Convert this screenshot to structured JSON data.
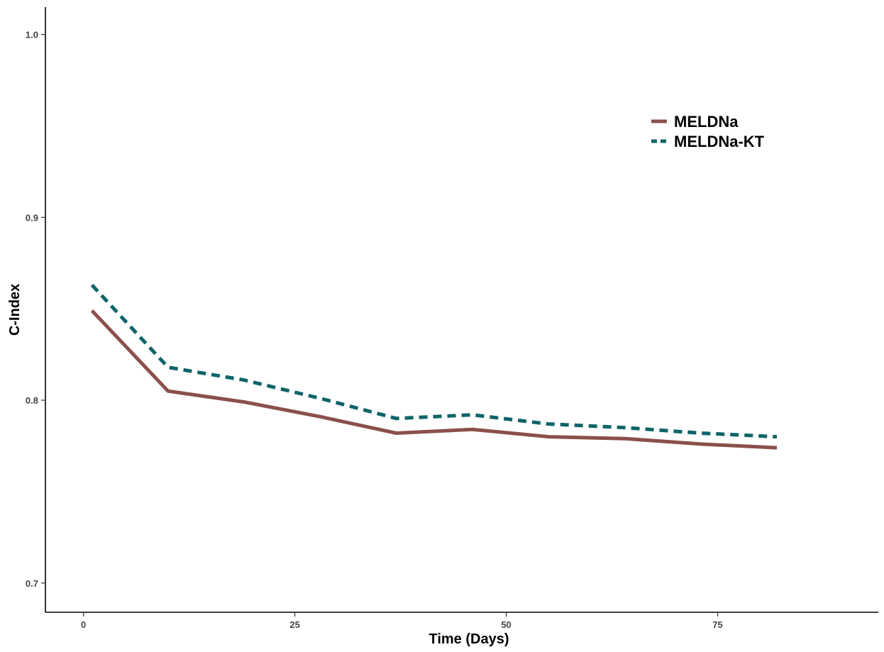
{
  "chart_data": {
    "type": "line",
    "title": "",
    "xlabel": "Time (Days)",
    "ylabel": "C-Index",
    "xlim": [
      -4.5,
      94
    ],
    "ylim": [
      0.684,
      1.015
    ],
    "x_ticks": [
      0,
      25,
      50,
      75
    ],
    "x_tick_labels": [
      "0",
      "25",
      "50",
      "75"
    ],
    "y_ticks": [
      0.7,
      0.8,
      0.9,
      1.0
    ],
    "y_tick_labels": [
      "0.7",
      "0.8",
      "0.9",
      "1.0"
    ],
    "grid": false,
    "legend_position": "top-right",
    "series": [
      {
        "name": "MELDNa",
        "color": "#8B504A",
        "dash": "solid",
        "x": [
          1,
          10,
          19,
          28,
          37,
          46,
          55,
          64,
          73,
          82
        ],
        "y": [
          0.849,
          0.805,
          0.799,
          0.791,
          0.782,
          0.784,
          0.78,
          0.779,
          0.776,
          0.774
        ]
      },
      {
        "name": "MELDNa-KT",
        "color": "#0E6468",
        "dash": "dashed",
        "x": [
          1,
          10,
          19,
          28,
          37,
          46,
          55,
          64,
          73,
          82
        ],
        "y": [
          0.863,
          0.818,
          0.811,
          0.801,
          0.79,
          0.792,
          0.787,
          0.785,
          0.782,
          0.78
        ]
      }
    ]
  }
}
